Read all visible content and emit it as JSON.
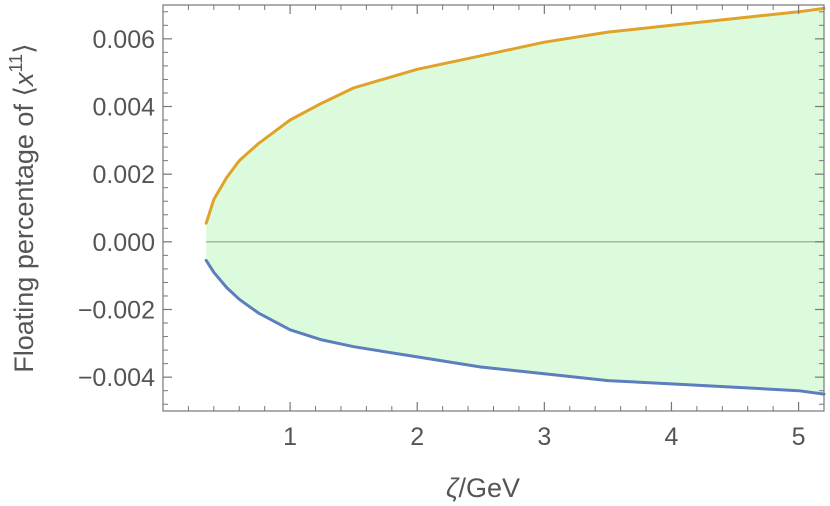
{
  "chart_data": {
    "type": "area",
    "title": "",
    "xlabel_symbol": "ζ",
    "xlabel_unit": "/GeV",
    "ylabel_prefix": "Floating percentage of ",
    "ylabel_var": "x",
    "ylabel_exp": "11",
    "ylabel_open": "⟨",
    "ylabel_close": "⟩",
    "xlim": [
      0.0,
      5.2
    ],
    "ylim": [
      -0.005,
      0.007
    ],
    "grid": false,
    "x_ticks": [
      1,
      2,
      3,
      4,
      5
    ],
    "x_tick_labels": [
      "1",
      "2",
      "3",
      "4",
      "5"
    ],
    "y_ticks": [
      0.006,
      0.004,
      0.002,
      0.0,
      -0.002,
      -0.004
    ],
    "y_tick_labels": [
      "0.006",
      "0.004",
      "0.002",
      "0.000",
      "−0.002",
      "−0.004"
    ],
    "fill_color": "#dcfbdc",
    "zero_line_color": "#9a9a9a",
    "series": [
      {
        "color": "#e0a22a",
        "x": [
          0.34,
          0.4,
          0.5,
          0.6,
          0.75,
          1.0,
          1.25,
          1.5,
          2.0,
          2.5,
          3.0,
          3.5,
          4.0,
          4.5,
          5.0,
          5.2
        ],
        "y": [
          0.00055,
          0.00125,
          0.0019,
          0.0024,
          0.0029,
          0.0036,
          0.0041,
          0.00455,
          0.0051,
          0.0055,
          0.0059,
          0.0062,
          0.0064,
          0.0066,
          0.0068,
          0.0069
        ]
      },
      {
        "color": "#5b7fbe",
        "x": [
          0.34,
          0.4,
          0.5,
          0.6,
          0.75,
          1.0,
          1.25,
          1.5,
          2.0,
          2.5,
          3.0,
          3.5,
          4.0,
          4.5,
          5.0,
          5.2
        ],
        "y": [
          -0.00055,
          -0.0009,
          -0.00135,
          -0.0017,
          -0.0021,
          -0.0026,
          -0.0029,
          -0.0031,
          -0.0034,
          -0.0037,
          -0.0039,
          -0.0041,
          -0.0042,
          -0.0043,
          -0.0044,
          -0.0045
        ]
      }
    ]
  }
}
